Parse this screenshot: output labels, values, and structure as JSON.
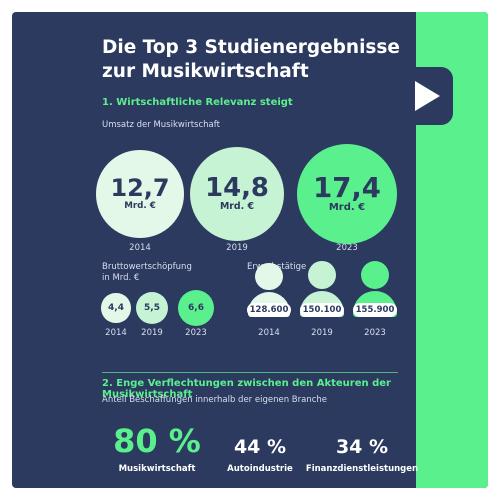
{
  "title": "Die Top 3 Studienergebnisse zur Musikwirtschaft",
  "section1": {
    "heading": "1. Wirtschaftliche Relevanz steigt",
    "umsatz_label": "Umsatz der Musikwirtschaft",
    "unit": "Mrd. €",
    "bws_label": "Bruttowertschöpfung in Mrd. €",
    "erwerb_label": "Erwerbstätige"
  },
  "section2": {
    "heading": "2. Enge Verflechtungen zwischen den Akteuren der Musikwirtschaft",
    "subtitle": "Anteil Beschaffungen innerhalb der eigenen Branche"
  },
  "colors": {
    "navy": "#2b3a5e",
    "green": "#5bf08e",
    "pale_green": "#e3f8e8",
    "mid_green": "#c5f3d3",
    "light_green": "#a9efbf"
  },
  "chart_data": [
    {
      "type": "bubble",
      "title": "Umsatz der Musikwirtschaft",
      "unit": "Mrd. €",
      "categories": [
        "2014",
        "2019",
        "2023"
      ],
      "values": [
        12.7,
        14.8,
        17.4
      ],
      "labels": [
        "12,7",
        "14,8",
        "17,4"
      ]
    },
    {
      "type": "bubble",
      "title": "Bruttowertschöpfung in Mrd. €",
      "categories": [
        "2014",
        "2019",
        "2023"
      ],
      "values": [
        4.4,
        5.5,
        6.6
      ],
      "labels": [
        "4,4",
        "5,5",
        "6,6"
      ]
    },
    {
      "type": "pictogram",
      "title": "Erwerbstätige",
      "categories": [
        "2014",
        "2019",
        "2023"
      ],
      "values": [
        128600,
        150100,
        155900
      ],
      "labels": [
        "128.600",
        "150.100",
        "155.900"
      ]
    },
    {
      "type": "table",
      "title": "Anteil Beschaffungen innerhalb der eigenen Branche",
      "categories": [
        "Musikwirtschaft",
        "Autoindustrie",
        "Finanzdienstleistungen"
      ],
      "values": [
        80,
        44,
        34
      ],
      "labels": [
        "80 %",
        "44 %",
        "34 %"
      ],
      "unit": "%"
    }
  ]
}
